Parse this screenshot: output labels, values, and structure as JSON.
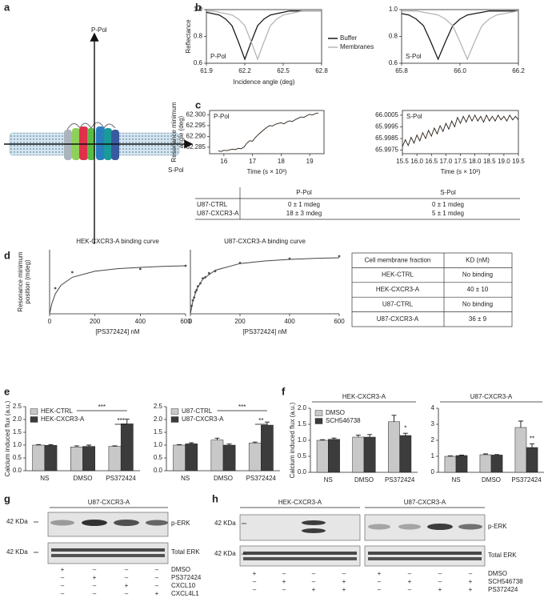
{
  "panel_labels": [
    "a",
    "b",
    "c",
    "d",
    "e",
    "f",
    "g",
    "h"
  ],
  "diagram": {
    "vertical_label": "P-Pol",
    "horizontal_label": "S-Pol"
  },
  "chart_data": [
    {
      "type": "line",
      "ylabel": "Reflectance",
      "xlabel": "Incidence angle (deg)",
      "annotation": "P-Pol",
      "legend": "right",
      "xlim": [
        61.9,
        62.8
      ],
      "xticks": [
        61.9,
        62.2,
        62.5,
        62.8
      ],
      "ylim": [
        0.6,
        1.0
      ],
      "yticks": [
        0.6,
        0.8,
        {
          "value": 1,
          "label": "1.0"
        }
      ],
      "x": [
        61.9,
        61.95,
        62,
        62.05,
        62.1,
        62.15,
        62.2,
        62.25,
        62.3,
        62.35,
        62.4,
        62.45,
        62.5,
        62.55,
        62.6,
        62.65,
        62.7,
        62.75,
        62.8
      ],
      "series": [
        {
          "name": "Buffer",
          "color": "#1a1a1a",
          "values": [
            0.98,
            0.97,
            0.96,
            0.93,
            0.88,
            0.76,
            0.63,
            0.76,
            0.88,
            0.93,
            0.96,
            0.97,
            0.98,
            0.99,
            0.99,
            0.99,
            0.99,
            0.99,
            0.99
          ]
        },
        {
          "name": "Membranes",
          "color": "#b5b5b5",
          "values": [
            0.99,
            0.99,
            0.98,
            0.97,
            0.96,
            0.93,
            0.88,
            0.76,
            0.63,
            0.76,
            0.88,
            0.93,
            0.96,
            0.97,
            0.98,
            0.99,
            0.99,
            0.99,
            0.99
          ]
        }
      ]
    },
    {
      "type": "line",
      "annotation": "S-Pol",
      "xlim": [
        65.8,
        66.2
      ],
      "xticks": [
        65.8,
        {
          "value": 66,
          "label": "66.0"
        },
        66.2
      ],
      "ylim": [
        0.6,
        1.0
      ],
      "yticks": [
        0.6,
        0.8,
        {
          "value": 1,
          "label": "1.0"
        }
      ],
      "x": [
        65.8,
        65.825,
        65.85,
        65.875,
        65.9,
        65.925,
        65.95,
        65.975,
        66,
        66.025,
        66.05,
        66.075,
        66.1,
        66.125,
        66.15,
        66.175,
        66.2
      ],
      "series": [
        {
          "color": "#1a1a1a",
          "values": [
            0.97,
            0.96,
            0.93,
            0.88,
            0.76,
            0.63,
            0.76,
            0.88,
            0.93,
            0.96,
            0.97,
            0.98,
            0.99,
            0.99,
            0.99,
            0.99,
            0.99
          ]
        },
        {
          "color": "#b5b5b5",
          "values": [
            0.99,
            0.99,
            0.99,
            0.98,
            0.97,
            0.96,
            0.93,
            0.88,
            0.76,
            0.63,
            0.76,
            0.88,
            0.93,
            0.96,
            0.97,
            0.98,
            0.99
          ]
        }
      ]
    },
    {
      "type": "line",
      "ylabel": [
        "Resonance minimum",
        "angle (deg)"
      ],
      "xlabel": "Time (s × 10³)",
      "annotation": "P-Pol",
      "xlim": [
        15.5,
        19.5
      ],
      "xticks": [
        16,
        17,
        18,
        19
      ],
      "ylim": [
        62.282,
        62.302
      ],
      "yticks": [
        62.285,
        {
          "value": 62.29,
          "label": "62.290"
        },
        62.295,
        {
          "value": 62.3,
          "label": "62.300"
        }
      ],
      "x": [
        15.8,
        15.9,
        16,
        16.1,
        16.2,
        16.3,
        16.4,
        16.5,
        16.6,
        16.7,
        16.8,
        16.9,
        17,
        17.1,
        17.2,
        17.3,
        17.4,
        17.5,
        17.6,
        17.7,
        17.8,
        17.9,
        18,
        18.1,
        18.2,
        18.3,
        18.4,
        18.5,
        18.6,
        18.7,
        18.8,
        18.9,
        19,
        19.1,
        19.2,
        19.3
      ],
      "series": [
        {
          "color": "#2a1e14",
          "values": [
            62.2833,
            62.283,
            62.2836,
            62.2834,
            62.2838,
            62.2841,
            62.2839,
            62.2845,
            62.2843,
            62.285,
            62.2868,
            62.288,
            62.2878,
            62.2895,
            62.2908,
            62.292,
            62.2931,
            62.2942,
            62.295,
            62.2948,
            62.2956,
            62.296,
            62.2963,
            62.2958,
            62.2967,
            62.2972,
            62.2969,
            62.2978,
            62.2984,
            62.299,
            62.2988,
            62.2996,
            62.3002,
            62.2999,
            62.3006,
            62.3008
          ]
        }
      ]
    },
    {
      "type": "line",
      "xlabel": "Time (s × 10³)",
      "annotation": "S-Pol",
      "xlim": [
        15.5,
        19.5
      ],
      "xticks": [
        15.5,
        {
          "value": 16,
          "label": "16.0"
        },
        16.5,
        {
          "value": 17,
          "label": "17.0"
        },
        17.5,
        {
          "value": 18,
          "label": "18.0"
        },
        18.5,
        {
          "value": 19,
          "label": "19.0"
        },
        19.5
      ],
      "ylim": [
        65.9972,
        66.0009
      ],
      "yticks": [
        65.9975,
        65.9985,
        65.9995,
        66.0005
      ],
      "x": [
        15.5,
        15.6,
        15.7,
        15.8,
        15.9,
        16,
        16.1,
        16.2,
        16.3,
        16.4,
        16.5,
        16.6,
        16.7,
        16.8,
        16.9,
        17,
        17.1,
        17.2,
        17.3,
        17.4,
        17.5,
        17.6,
        17.7,
        17.8,
        17.9,
        18,
        18.1,
        18.2,
        18.3,
        18.4,
        18.5,
        18.6,
        18.7,
        18.8,
        18.9,
        19,
        19.1,
        19.2,
        19.3,
        19.4,
        19.5
      ],
      "series": [
        {
          "color": "#2a1e14",
          "values": [
            65.9978,
            65.9984,
            65.9979,
            65.9986,
            65.9981,
            65.9988,
            65.9983,
            65.999,
            65.9985,
            65.9992,
            65.9987,
            65.9994,
            65.9989,
            65.9996,
            65.9991,
            65.9998,
            65.9993,
            66,
            65.9995,
            66.0003,
            65.9998,
            66.0004,
            65.9999,
            66.0005,
            66,
            66.0005,
            66,
            66.0004,
            65.9999,
            66.0005,
            66,
            66.0004,
            66,
            66.0005,
            66.0001,
            66.0004,
            66,
            66.0005,
            66.0001,
            66.0004,
            66.0001
          ]
        }
      ]
    },
    {
      "type": "scatter",
      "title": "HEK-CXCR3-A binding curve",
      "ylabel": [
        "Resonance minimum",
        "position (mdeg)"
      ],
      "xlabel": "[PS372424] nM",
      "xlim": [
        0,
        600
      ],
      "xticks": [
        0,
        200,
        400,
        600
      ],
      "ylim": [
        0,
        20
      ],
      "series": [
        {
          "mode": "markers",
          "color": "#555555",
          "x": [
            25,
            100,
            400,
            600
          ],
          "values": [
            8,
            13,
            14,
            15
          ]
        },
        {
          "mode": "line",
          "color": "#444444",
          "x": [
            0,
            10,
            25,
            50,
            100,
            200,
            300,
            400,
            500,
            600
          ],
          "values": [
            0,
            3.2,
            6.2,
            8.9,
            11.4,
            13.3,
            14.1,
            14.5,
            14.8,
            15
          ]
        }
      ]
    },
    {
      "type": "scatter",
      "title": "U87-CXCR3-A binding curve",
      "xlabel": "[PS372424] nM",
      "xlim": [
        0,
        600
      ],
      "xticks": [
        0,
        200,
        400,
        600
      ],
      "ylim": [
        0,
        20
      ],
      "series": [
        {
          "mode": "markers",
          "color": "#555555",
          "x": [
            5,
            10,
            15,
            20,
            25,
            30,
            40,
            50,
            60,
            75,
            100,
            200,
            400,
            600
          ],
          "values": [
            2.5,
            4.2,
            5.1,
            6.8,
            7.4,
            8.6,
            9.5,
            11.1,
            11.4,
            12.7,
            13.3,
            15.9,
            17.2,
            18
          ]
        },
        {
          "mode": "line",
          "color": "#444444",
          "x": [
            0,
            10,
            25,
            50,
            100,
            200,
            300,
            400,
            500,
            600
          ],
          "values": [
            0,
            4,
            7.6,
            10.8,
            13.6,
            15.7,
            16.5,
            17,
            17.3,
            17.5
          ]
        }
      ]
    },
    {
      "type": "bar",
      "ylabel": "Calcium induced flux (a.u.)",
      "legend": "upper left",
      "categories": [
        "NS",
        "DMSO",
        "PS372424"
      ],
      "ylim": [
        0,
        2.5
      ],
      "yticks": [
        {
          "value": 0,
          "label": "0.0"
        },
        0.5,
        {
          "value": 1,
          "label": "1.0"
        },
        1.5,
        {
          "value": 2,
          "label": "2.0"
        },
        2.5
      ],
      "annotations": [
        "***",
        "***"
      ],
      "series": [
        {
          "name": "HEK-CTRL",
          "color": "#c8c8c8",
          "values": [
            1,
            0.93,
            0.95
          ],
          "errors": [
            0.02,
            0.04,
            0.02
          ]
        },
        {
          "name": "HEK-CXCR3-A",
          "color": "#3c3c3c",
          "values": [
            0.99,
            0.95,
            1.83
          ],
          "errors": [
            0.03,
            0.05,
            0.18
          ]
        }
      ]
    },
    {
      "type": "bar",
      "legend": "upper left",
      "categories": [
        "NS",
        "DMSO",
        "PS372424"
      ],
      "ylim": [
        0,
        2.5
      ],
      "yticks": [
        {
          "value": 0,
          "label": "0.0"
        },
        0.5,
        {
          "value": 1,
          "label": "1.0"
        },
        1.5,
        {
          "value": 2,
          "label": "2.0"
        },
        2.5
      ],
      "annotations": [
        "***",
        "**"
      ],
      "series": [
        {
          "name": "U87-CTRL",
          "color": "#c8c8c8",
          "values": [
            1,
            1.2,
            1.08
          ],
          "errors": [
            0.02,
            0.07,
            0.04
          ]
        },
        {
          "name": "U87-CXCR3-A",
          "color": "#3c3c3c",
          "values": [
            1.05,
            1,
            1.78
          ],
          "errors": [
            0.04,
            0.04,
            0.12
          ]
        }
      ]
    },
    {
      "type": "bar",
      "title": "HEK-CXCR3-A",
      "ylabel": "Calcium induced flux (a.u.)",
      "legend": "upper left",
      "categories": [
        "NS",
        "DMSO",
        "PS372424"
      ],
      "ylim": [
        0,
        2
      ],
      "yticks": [
        {
          "value": 0,
          "label": "0.0"
        },
        0.5,
        {
          "value": 1,
          "label": "1.0"
        },
        1.5,
        {
          "value": 2,
          "label": "2.0"
        }
      ],
      "annotations": [
        "*"
      ],
      "series": [
        {
          "name": "DMSO",
          "color": "#c8c8c8",
          "values": [
            1,
            1.1,
            1.58
          ],
          "errors": [
            0.02,
            0.06,
            0.2
          ]
        },
        {
          "name": "SCH546738",
          "color": "#3c3c3c",
          "values": [
            1.03,
            1.1,
            1.15
          ],
          "errors": [
            0.04,
            0.08,
            0.07
          ]
        }
      ]
    },
    {
      "type": "bar",
      "title": "U87-CXCR3-A",
      "categories": [
        "NS",
        "DMSO",
        "PS372424"
      ],
      "ylim": [
        0,
        4
      ],
      "yticks": [
        0,
        1,
        2,
        3,
        4
      ],
      "annotations": [
        "**"
      ],
      "series": [
        {
          "color": "#c8c8c8",
          "values": [
            1,
            1.1,
            2.8
          ],
          "errors": [
            0.03,
            0.05,
            0.4
          ]
        },
        {
          "color": "#3c3c3c",
          "values": [
            1.05,
            1.08,
            1.55
          ],
          "errors": [
            0.03,
            0.03,
            0.22
          ]
        }
      ]
    }
  ],
  "tables": [
    {
      "header": [
        "P-Pol",
        "S-Pol"
      ],
      "rows": [
        [
          "U87-CTRL",
          "0 ± 1 mdeg",
          "0 ± 1 mdeg"
        ],
        [
          "U87-CXCR3-A",
          "18 ± 3 mdeg",
          "5 ± 1 mdeg"
        ]
      ]
    },
    {
      "header": [
        "Cell membrane fraction",
        "KD (nM)"
      ],
      "rows": [
        [
          "HEK-CTRL",
          "No binding"
        ],
        [
          "HEK-CXCR3-A",
          "40 ± 10"
        ],
        [
          "U87-CTRL",
          "No binding"
        ],
        [
          "U87-CXCR3-A",
          "36 ± 9"
        ]
      ]
    }
  ],
  "blots": [
    {
      "titles": [
        "U87-CXCR3-A"
      ],
      "markers": [
        "42 KDa",
        "42 KDa"
      ],
      "bands": [
        "p-ERK",
        "Total ERK"
      ],
      "treatments": [
        {
          "name": "DMSO",
          "signs": [
            "+",
            "–",
            "–",
            "–"
          ]
        },
        {
          "name": "PS372424",
          "signs": [
            "–",
            "+",
            "–",
            "–"
          ]
        },
        {
          "name": "CXCL10",
          "signs": [
            "–",
            "–",
            "+",
            "–"
          ]
        },
        {
          "name": "CXCL4L1",
          "signs": [
            "–",
            "–",
            "–",
            "+"
          ]
        }
      ]
    },
    {
      "titles": [
        "HEK-CXCR3-A",
        "U87-CXCR3-A"
      ],
      "markers": [
        "42 KDa",
        "42 KDa"
      ],
      "bands": [
        "p-ERK",
        "Total ERK"
      ],
      "treatments": [
        {
          "name": "DMSO",
          "signs": [
            "+",
            "–",
            "–",
            "–",
            "+",
            "–",
            "–",
            "–"
          ]
        },
        {
          "name": "SCH546738",
          "signs": [
            "–",
            "+",
            "–",
            "+",
            "–",
            "+",
            "–",
            "+"
          ]
        },
        {
          "name": "PS372424",
          "signs": [
            "–",
            "–",
            "+",
            "+",
            "–",
            "–",
            "+",
            "+"
          ]
        }
      ]
    }
  ]
}
